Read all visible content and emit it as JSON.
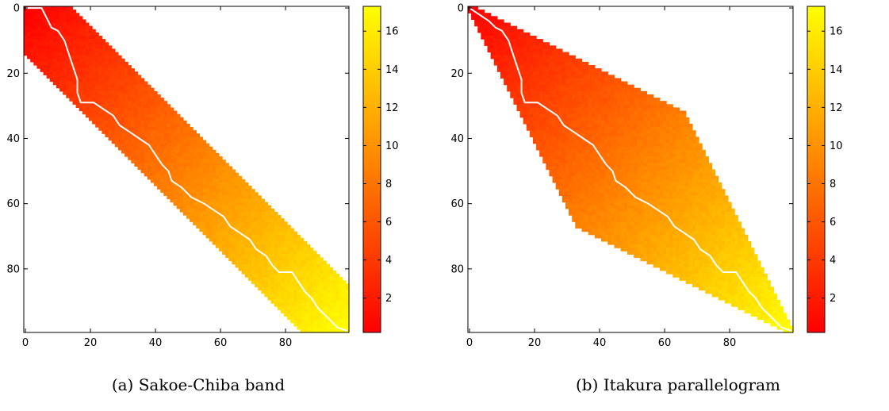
{
  "chart_data": [
    {
      "type": "heatmap",
      "caption": "(a) Sakoe-Chiba band",
      "constraint": "band",
      "band_half_width": 14,
      "grid_size": 100,
      "xticks": [
        0,
        20,
        40,
        60,
        80
      ],
      "yticks": [
        0,
        20,
        40,
        60,
        80
      ],
      "colorbar_ticks": [
        2,
        4,
        6,
        8,
        10,
        12,
        14,
        16
      ],
      "colorbar_range": [
        0.2,
        17.3
      ],
      "colormap": [
        "#ff0000",
        "#ffff00"
      ],
      "path": [
        [
          0,
          0
        ],
        [
          5,
          0
        ],
        [
          6,
          2
        ],
        [
          7,
          4
        ],
        [
          8,
          6
        ],
        [
          10,
          7
        ],
        [
          12,
          10
        ],
        [
          13,
          13
        ],
        [
          14,
          16
        ],
        [
          15,
          19
        ],
        [
          16,
          22
        ],
        [
          16,
          26
        ],
        [
          17,
          29
        ],
        [
          21,
          29
        ],
        [
          24,
          31
        ],
        [
          27,
          33
        ],
        [
          29,
          36
        ],
        [
          32,
          38
        ],
        [
          35,
          40
        ],
        [
          38,
          42
        ],
        [
          40,
          45
        ],
        [
          42,
          48
        ],
        [
          44,
          50
        ],
        [
          45,
          53
        ],
        [
          48,
          55
        ],
        [
          51,
          58
        ],
        [
          55,
          60
        ],
        [
          58,
          62
        ],
        [
          61,
          64
        ],
        [
          63,
          67
        ],
        [
          66,
          69
        ],
        [
          69,
          71
        ],
        [
          71,
          74
        ],
        [
          74,
          76
        ],
        [
          76,
          79
        ],
        [
          78,
          81
        ],
        [
          82,
          81
        ],
        [
          84,
          84
        ],
        [
          86,
          87
        ],
        [
          88,
          89
        ],
        [
          90,
          92
        ],
        [
          92,
          94
        ],
        [
          94,
          96
        ],
        [
          96,
          98
        ],
        [
          99,
          99
        ]
      ]
    },
    {
      "type": "heatmap",
      "caption": "(b) Itakura parallelogram",
      "constraint": "parallelogram",
      "grid_size": 100,
      "xticks": [
        0,
        20,
        40,
        60,
        80
      ],
      "yticks": [
        0,
        20,
        40,
        60,
        80
      ],
      "colorbar_ticks": [
        2,
        4,
        6,
        8,
        10,
        12,
        14,
        16
      ],
      "colorbar_range": [
        0.2,
        17.3
      ],
      "colormap": [
        "#ff0000",
        "#ffff00"
      ],
      "path": [
        [
          0,
          0
        ],
        [
          3,
          2
        ],
        [
          6,
          4
        ],
        [
          8,
          6
        ],
        [
          10,
          7
        ],
        [
          12,
          10
        ],
        [
          13,
          13
        ],
        [
          14,
          16
        ],
        [
          15,
          19
        ],
        [
          16,
          22
        ],
        [
          16,
          26
        ],
        [
          17,
          29
        ],
        [
          21,
          29
        ],
        [
          24,
          31
        ],
        [
          27,
          33
        ],
        [
          29,
          36
        ],
        [
          32,
          38
        ],
        [
          35,
          40
        ],
        [
          38,
          42
        ],
        [
          40,
          45
        ],
        [
          42,
          48
        ],
        [
          44,
          50
        ],
        [
          45,
          53
        ],
        [
          48,
          55
        ],
        [
          51,
          58
        ],
        [
          55,
          60
        ],
        [
          58,
          62
        ],
        [
          61,
          64
        ],
        [
          63,
          67
        ],
        [
          66,
          69
        ],
        [
          69,
          71
        ],
        [
          71,
          74
        ],
        [
          74,
          76
        ],
        [
          76,
          79
        ],
        [
          78,
          81
        ],
        [
          82,
          81
        ],
        [
          84,
          84
        ],
        [
          86,
          87
        ],
        [
          88,
          89
        ],
        [
          90,
          92
        ],
        [
          92,
          94
        ],
        [
          94,
          96
        ],
        [
          96,
          98
        ],
        [
          99,
          99
        ]
      ]
    }
  ]
}
